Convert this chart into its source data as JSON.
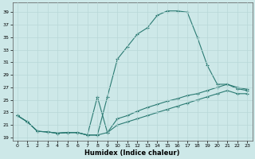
{
  "xlabel": "Humidex (Indice chaleur)",
  "xlim": [
    -0.5,
    23.5
  ],
  "ylim": [
    18.5,
    40.5
  ],
  "yticks": [
    19,
    21,
    23,
    25,
    27,
    29,
    31,
    33,
    35,
    37,
    39
  ],
  "xticks": [
    0,
    1,
    2,
    3,
    4,
    5,
    6,
    7,
    8,
    9,
    10,
    11,
    12,
    13,
    14,
    15,
    16,
    17,
    18,
    19,
    20,
    21,
    22,
    23
  ],
  "bg_color": "#cde8e8",
  "line_color": "#2a7a72",
  "grid_color": "#b8d8d8",
  "lines": [
    {
      "x": [
        0,
        1,
        2,
        3,
        4,
        5,
        6,
        7,
        8,
        9,
        10,
        11,
        12,
        13,
        14,
        15,
        16,
        17,
        18,
        19,
        20,
        21,
        22,
        23
      ],
      "y": [
        22.5,
        21.5,
        20.0,
        19.9,
        19.7,
        19.8,
        19.8,
        19.4,
        19.4,
        25.5,
        31.5,
        33.5,
        35.5,
        36.5,
        38.5,
        39.2,
        39.2,
        39.0,
        35.0,
        30.5,
        27.5,
        27.5,
        26.8,
        26.5
      ]
    },
    {
      "x": [
        0,
        1,
        2,
        3,
        4,
        5,
        6,
        7,
        8,
        9,
        10,
        11,
        12,
        13,
        14,
        15,
        16,
        17,
        18,
        19,
        20,
        21,
        22,
        23
      ],
      "y": [
        22.5,
        21.5,
        20.0,
        19.9,
        19.7,
        19.8,
        19.8,
        19.4,
        25.5,
        19.8,
        22.0,
        22.5,
        23.2,
        23.8,
        24.3,
        24.8,
        25.2,
        25.7,
        26.0,
        26.5,
        27.0,
        27.5,
        27.0,
        26.7
      ]
    },
    {
      "x": [
        0,
        1,
        2,
        3,
        4,
        5,
        6,
        7,
        8,
        9,
        10,
        11,
        12,
        13,
        14,
        15,
        16,
        17,
        18,
        19,
        20,
        21,
        22,
        23
      ],
      "y": [
        22.5,
        21.5,
        20.0,
        19.9,
        19.7,
        19.8,
        19.8,
        19.4,
        19.4,
        19.8,
        21.0,
        21.5,
        22.0,
        22.5,
        23.0,
        23.5,
        24.0,
        24.5,
        25.0,
        25.5,
        26.0,
        26.5,
        26.0,
        26.0
      ]
    }
  ]
}
